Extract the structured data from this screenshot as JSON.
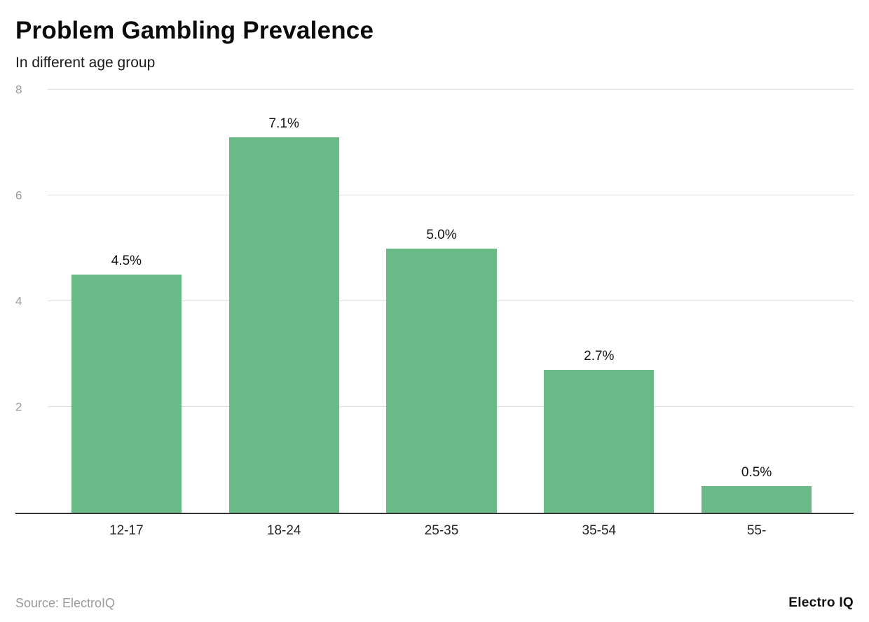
{
  "header": {
    "title": "Problem Gambling Prevalence",
    "subtitle": "In different age group"
  },
  "footer": {
    "source": "Source: ElectroIQ",
    "brand": "Electro IQ"
  },
  "colors": {
    "bar": "#69ba86",
    "gridline": "#dddddd",
    "axis": "#333333",
    "ytick": "#9a9a9a"
  },
  "chart_data": {
    "type": "bar",
    "title": "Problem Gambling Prevalence",
    "subtitle": "In different age group",
    "categories": [
      "12-17",
      "18-24",
      "25-35",
      "35-54",
      "55-"
    ],
    "values": [
      4.5,
      7.1,
      5.0,
      2.7,
      0.5
    ],
    "value_labels": [
      "4.5%",
      "7.1%",
      "5.0%",
      "2.7%",
      "0.5%"
    ],
    "xlabel": "",
    "ylabel": "",
    "ylim": [
      0,
      8
    ],
    "yticks": [
      2,
      4,
      6,
      8
    ],
    "grid": true,
    "legend": false
  }
}
